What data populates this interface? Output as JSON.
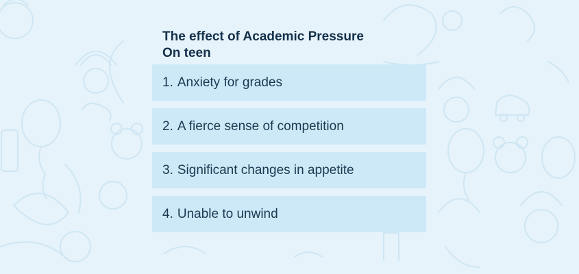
{
  "infographic": {
    "title": "The effect of Academic Pressure On teen",
    "items": [
      {
        "number": "1.",
        "text": "Anxiety for grades"
      },
      {
        "number": "2.",
        "text": "A fierce sense of competition"
      },
      {
        "number": "3.",
        "text": "Significant changes in appetite"
      },
      {
        "number": "4.",
        "text": "Unable to unwind"
      }
    ]
  },
  "colors": {
    "background": "#e6f3fb",
    "item_background": "#cde9f7",
    "title_text": "#14304a",
    "item_text": "#1b3850",
    "doodle_line": "#cfe6f3"
  }
}
